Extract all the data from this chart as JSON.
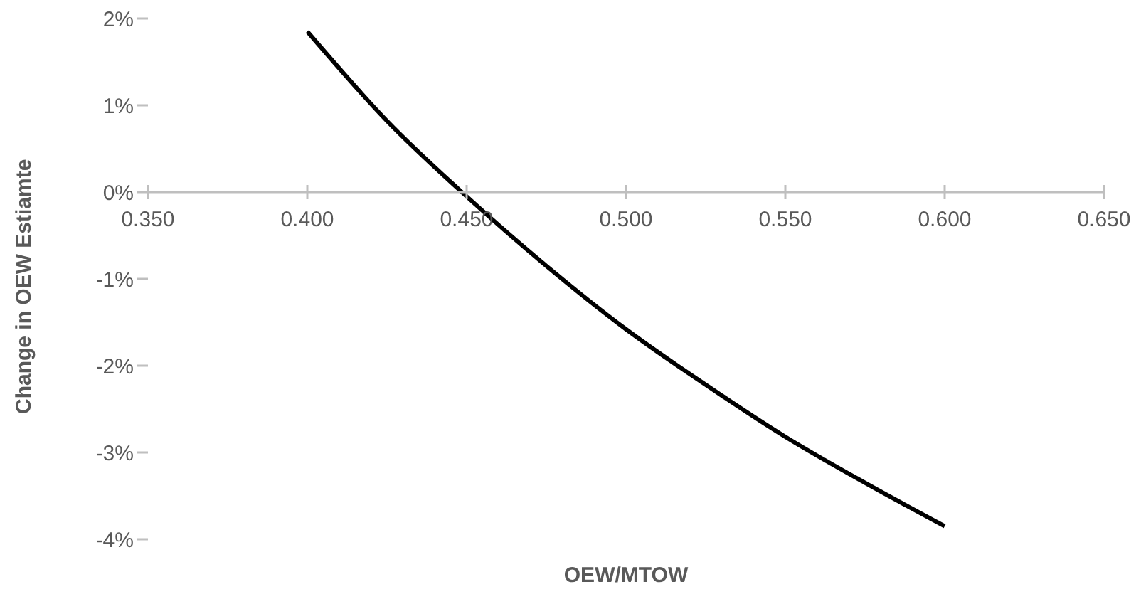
{
  "chart_data": {
    "type": "line",
    "xlabel": "OEW/MTOW",
    "ylabel": "Change in OEW Estiamte",
    "x": [
      0.4,
      0.425,
      0.45,
      0.475,
      0.5,
      0.525,
      0.55,
      0.575,
      0.6
    ],
    "series": [
      {
        "color": "#000000",
        "values": [
          1.85,
          0.82,
          -0.05,
          -0.85,
          -1.58,
          -2.22,
          -2.82,
          -3.35,
          -3.85
        ]
      }
    ],
    "xlim": [
      0.35,
      0.65
    ],
    "xticks": [
      {
        "value": 0.35,
        "label": "0.350"
      },
      {
        "value": 0.4,
        "label": "0.400"
      },
      {
        "value": 0.45,
        "label": "0.450"
      },
      {
        "value": 0.5,
        "label": "0.500"
      },
      {
        "value": 0.55,
        "label": "0.550"
      },
      {
        "value": 0.6,
        "label": "0.600"
      },
      {
        "value": 0.65,
        "label": "0.650"
      }
    ],
    "ylim": [
      -4,
      2
    ],
    "yticks": [
      {
        "value": -4,
        "label": "-4%"
      },
      {
        "value": -3,
        "label": "-3%"
      },
      {
        "value": -2,
        "label": "-2%"
      },
      {
        "value": -1,
        "label": "-1%"
      },
      {
        "value": 0,
        "label": "0%"
      },
      {
        "value": 1,
        "label": "1%"
      },
      {
        "value": 2,
        "label": "2%"
      }
    ],
    "grid": false,
    "legend": false,
    "marker": "none",
    "line_style": "solid"
  }
}
